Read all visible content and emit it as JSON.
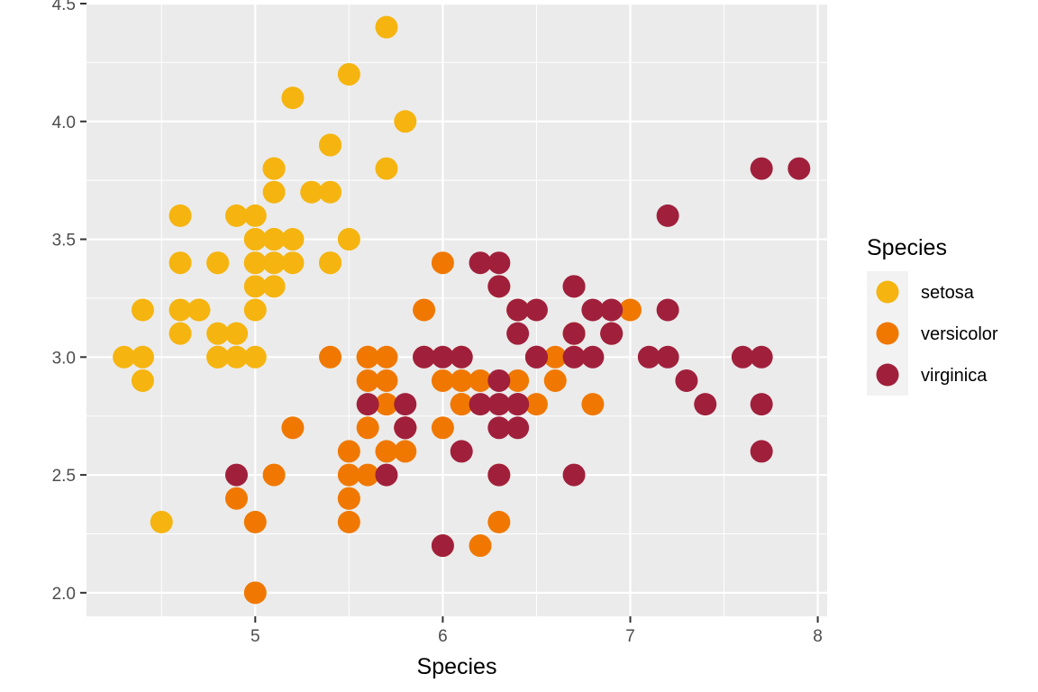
{
  "chart_data": {
    "type": "scatter",
    "title": "",
    "xlabel": "Species",
    "ylabel": "",
    "xlim": [
      4.1,
      8.05
    ],
    "ylim": [
      1.9,
      4.5
    ],
    "x_ticks": [
      5,
      6,
      7,
      8
    ],
    "x_tick_labels": [
      "5",
      "6",
      "7",
      "8"
    ],
    "y_ticks": [
      2.0,
      2.5,
      3.0,
      3.5,
      4.0,
      4.5
    ],
    "y_tick_labels": [
      "2.0",
      "2.5",
      "3.0",
      "3.5",
      "4.0",
      "4.5"
    ],
    "grid": true,
    "legend": {
      "title": "Species",
      "position": "right"
    },
    "series": [
      {
        "name": "setosa",
        "color": "#F5B40F",
        "points": [
          [
            5.1,
            3.5
          ],
          [
            4.9,
            3.0
          ],
          [
            4.7,
            3.2
          ],
          [
            4.6,
            3.1
          ],
          [
            5.0,
            3.6
          ],
          [
            5.4,
            3.9
          ],
          [
            4.6,
            3.4
          ],
          [
            5.0,
            3.4
          ],
          [
            4.4,
            2.9
          ],
          [
            4.9,
            3.1
          ],
          [
            5.4,
            3.7
          ],
          [
            4.8,
            3.4
          ],
          [
            4.8,
            3.0
          ],
          [
            4.3,
            3.0
          ],
          [
            5.8,
            4.0
          ],
          [
            5.7,
            4.4
          ],
          [
            5.4,
            3.9
          ],
          [
            5.1,
            3.5
          ],
          [
            5.7,
            3.8
          ],
          [
            5.1,
            3.8
          ],
          [
            5.4,
            3.4
          ],
          [
            5.1,
            3.7
          ],
          [
            4.6,
            3.6
          ],
          [
            5.1,
            3.3
          ],
          [
            4.8,
            3.4
          ],
          [
            5.0,
            3.0
          ],
          [
            5.0,
            3.4
          ],
          [
            5.2,
            3.5
          ],
          [
            5.2,
            3.4
          ],
          [
            4.7,
            3.2
          ],
          [
            4.8,
            3.1
          ],
          [
            5.4,
            3.4
          ],
          [
            5.2,
            4.1
          ],
          [
            5.5,
            4.2
          ],
          [
            4.9,
            3.1
          ],
          [
            5.0,
            3.2
          ],
          [
            5.5,
            3.5
          ],
          [
            4.9,
            3.6
          ],
          [
            4.4,
            3.0
          ],
          [
            5.1,
            3.4
          ],
          [
            5.0,
            3.5
          ],
          [
            4.5,
            2.3
          ],
          [
            4.4,
            3.2
          ],
          [
            5.0,
            3.5
          ],
          [
            5.1,
            3.8
          ],
          [
            4.8,
            3.0
          ],
          [
            5.1,
            3.8
          ],
          [
            4.6,
            3.2
          ],
          [
            5.3,
            3.7
          ],
          [
            5.0,
            3.3
          ]
        ]
      },
      {
        "name": "versicolor",
        "color": "#F07800",
        "points": [
          [
            7.0,
            3.2
          ],
          [
            6.4,
            3.2
          ],
          [
            6.9,
            3.1
          ],
          [
            5.5,
            2.3
          ],
          [
            6.5,
            2.8
          ],
          [
            5.7,
            2.8
          ],
          [
            6.3,
            3.3
          ],
          [
            4.9,
            2.4
          ],
          [
            6.6,
            2.9
          ],
          [
            5.2,
            2.7
          ],
          [
            5.0,
            2.0
          ],
          [
            5.9,
            3.0
          ],
          [
            6.0,
            2.2
          ],
          [
            6.1,
            2.9
          ],
          [
            5.6,
            2.9
          ],
          [
            6.7,
            3.1
          ],
          [
            5.6,
            3.0
          ],
          [
            5.8,
            2.7
          ],
          [
            6.2,
            2.2
          ],
          [
            5.6,
            2.5
          ],
          [
            5.9,
            3.2
          ],
          [
            6.1,
            2.8
          ],
          [
            6.3,
            2.5
          ],
          [
            6.1,
            2.8
          ],
          [
            6.4,
            2.9
          ],
          [
            6.6,
            3.0
          ],
          [
            6.8,
            2.8
          ],
          [
            6.7,
            3.0
          ],
          [
            6.0,
            2.9
          ],
          [
            5.7,
            2.6
          ],
          [
            5.5,
            2.4
          ],
          [
            5.5,
            2.4
          ],
          [
            5.8,
            2.7
          ],
          [
            6.0,
            2.7
          ],
          [
            5.4,
            3.0
          ],
          [
            6.0,
            3.4
          ],
          [
            6.7,
            3.1
          ],
          [
            6.3,
            2.3
          ],
          [
            5.6,
            3.0
          ],
          [
            5.5,
            2.5
          ],
          [
            5.5,
            2.6
          ],
          [
            6.1,
            3.0
          ],
          [
            5.8,
            2.6
          ],
          [
            5.0,
            2.3
          ],
          [
            5.6,
            2.7
          ],
          [
            5.7,
            3.0
          ],
          [
            5.7,
            2.9
          ],
          [
            6.2,
            2.9
          ],
          [
            5.1,
            2.5
          ],
          [
            5.7,
            2.8
          ]
        ]
      },
      {
        "name": "virginica",
        "color": "#A0203C",
        "points": [
          [
            6.3,
            3.3
          ],
          [
            5.8,
            2.7
          ],
          [
            7.1,
            3.0
          ],
          [
            6.3,
            2.9
          ],
          [
            6.5,
            3.0
          ],
          [
            7.6,
            3.0
          ],
          [
            4.9,
            2.5
          ],
          [
            7.3,
            2.9
          ],
          [
            6.7,
            2.5
          ],
          [
            7.2,
            3.6
          ],
          [
            6.5,
            3.2
          ],
          [
            6.4,
            2.7
          ],
          [
            6.8,
            3.0
          ],
          [
            5.7,
            2.5
          ],
          [
            5.8,
            2.8
          ],
          [
            6.4,
            3.2
          ],
          [
            6.5,
            3.0
          ],
          [
            7.7,
            3.8
          ],
          [
            7.7,
            2.6
          ],
          [
            6.0,
            2.2
          ],
          [
            6.9,
            3.2
          ],
          [
            5.6,
            2.8
          ],
          [
            7.7,
            2.8
          ],
          [
            6.3,
            2.7
          ],
          [
            6.7,
            3.3
          ],
          [
            7.2,
            3.2
          ],
          [
            6.2,
            2.8
          ],
          [
            6.1,
            3.0
          ],
          [
            6.4,
            2.8
          ],
          [
            7.2,
            3.0
          ],
          [
            7.4,
            2.8
          ],
          [
            7.9,
            3.8
          ],
          [
            6.4,
            2.8
          ],
          [
            6.3,
            2.8
          ],
          [
            6.1,
            2.6
          ],
          [
            7.7,
            3.0
          ],
          [
            6.3,
            3.4
          ],
          [
            6.4,
            3.1
          ],
          [
            6.0,
            3.0
          ],
          [
            6.9,
            3.1
          ],
          [
            6.7,
            3.1
          ],
          [
            6.9,
            3.1
          ],
          [
            5.8,
            2.7
          ],
          [
            6.8,
            3.2
          ],
          [
            6.7,
            3.3
          ],
          [
            6.7,
            3.0
          ],
          [
            6.3,
            2.5
          ],
          [
            6.5,
            3.0
          ],
          [
            6.2,
            3.4
          ],
          [
            5.9,
            3.0
          ]
        ]
      }
    ]
  }
}
